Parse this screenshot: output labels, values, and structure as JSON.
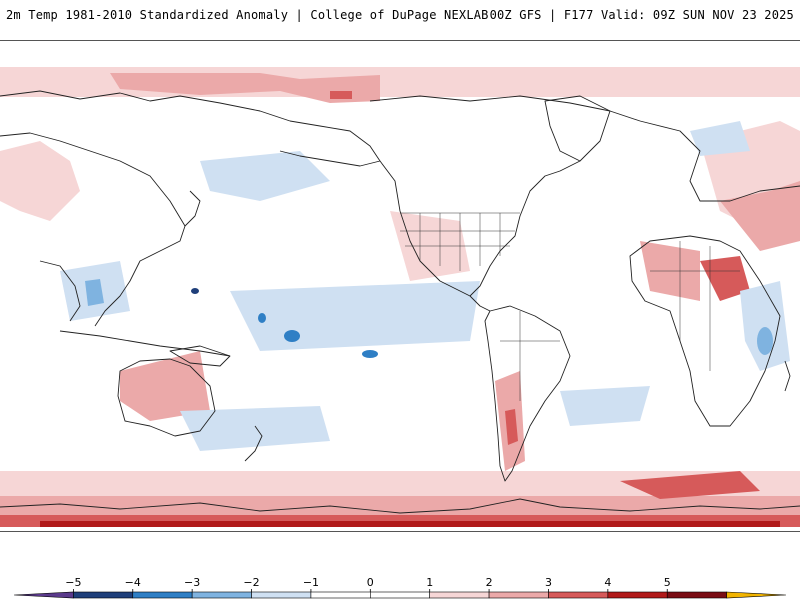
{
  "header": {
    "title_left": "2m Temp 1981-2010 Standardized Anomaly | College of DuPage NEXLAB",
    "title_right": "00Z GFS | F177 Valid: 09Z SUN NOV 23 2025"
  },
  "map": {
    "projection": "equirectangular-pacific-centered",
    "coastline_color": "#222222",
    "anomaly_colors": {
      "neg5": "#5b3a8c",
      "neg4": "#1f3f7a",
      "neg3": "#2f7fc5",
      "neg2": "#7fb3e0",
      "neg1": "#cfe0f2",
      "zero": "#ffffff",
      "pos1": "#f6d6d6",
      "pos2": "#eba9a9",
      "pos3": "#d65a5a",
      "pos4": "#b11a1a",
      "pos5": "#7a0d14",
      "pos6": "#f2b400"
    }
  },
  "legend": {
    "ticks": [
      "−5",
      "−4",
      "−3",
      "−2",
      "−1",
      "0",
      "1",
      "2",
      "3",
      "4",
      "5"
    ],
    "colors": [
      "#5b3a8c",
      "#1f3f7a",
      "#2f7fc5",
      "#7fb3e0",
      "#cfe0f2",
      "#ffffff",
      "#ffffff",
      "#f6d6d6",
      "#eba9a9",
      "#d65a5a",
      "#b11a1a",
      "#7a0d14",
      "#f2b400"
    ]
  }
}
